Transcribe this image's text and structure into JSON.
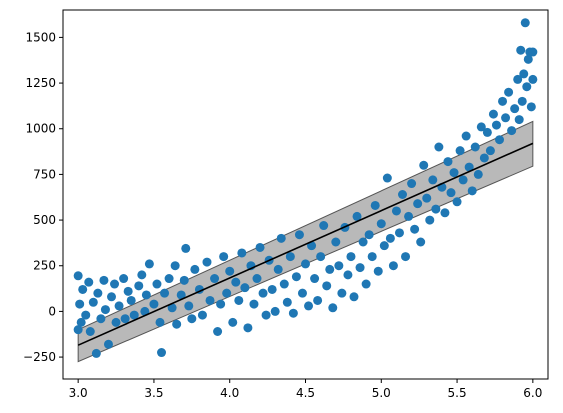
{
  "chart_data": {
    "type": "scatter",
    "title": "",
    "xlabel": "",
    "ylabel": "",
    "xlim": [
      2.9,
      6.1
    ],
    "ylim": [
      -370,
      1650
    ],
    "x_ticks": [
      3.0,
      3.5,
      4.0,
      4.5,
      5.0,
      5.5,
      6.0
    ],
    "x_tick_labels": [
      "3.0",
      "3.5",
      "4.0",
      "4.5",
      "5.0",
      "5.5",
      "6.0"
    ],
    "y_ticks": [
      -250,
      0,
      250,
      500,
      750,
      1000,
      1250,
      1500
    ],
    "y_tick_labels": [
      "−250",
      "0",
      "250",
      "500",
      "750",
      "1000",
      "1250",
      "1500"
    ],
    "grid": false,
    "legend": "none",
    "colors": {
      "points": "#1f77b4",
      "fit_line": "#000000",
      "band": "#808080"
    },
    "scatter_points": [
      [
        3.0,
        195
      ],
      [
        3.0,
        -100
      ],
      [
        3.01,
        40
      ],
      [
        3.02,
        -60
      ],
      [
        3.03,
        120
      ],
      [
        3.05,
        -20
      ],
      [
        3.07,
        160
      ],
      [
        3.08,
        -110
      ],
      [
        3.1,
        50
      ],
      [
        3.12,
        -230
      ],
      [
        3.13,
        100
      ],
      [
        3.15,
        -40
      ],
      [
        3.17,
        170
      ],
      [
        3.18,
        10
      ],
      [
        3.2,
        -180
      ],
      [
        3.22,
        80
      ],
      [
        3.24,
        150
      ],
      [
        3.25,
        -60
      ],
      [
        3.27,
        30
      ],
      [
        3.3,
        180
      ],
      [
        3.31,
        -40
      ],
      [
        3.33,
        110
      ],
      [
        3.35,
        60
      ],
      [
        3.37,
        -20
      ],
      [
        3.4,
        140
      ],
      [
        3.42,
        200
      ],
      [
        3.44,
        0
      ],
      [
        3.45,
        90
      ],
      [
        3.47,
        260
      ],
      [
        3.5,
        40
      ],
      [
        3.52,
        150
      ],
      [
        3.54,
        -60
      ],
      [
        3.55,
        -225
      ],
      [
        3.57,
        100
      ],
      [
        3.6,
        180
      ],
      [
        3.62,
        20
      ],
      [
        3.64,
        250
      ],
      [
        3.65,
        -70
      ],
      [
        3.68,
        90
      ],
      [
        3.7,
        170
      ],
      [
        3.71,
        345
      ],
      [
        3.73,
        30
      ],
      [
        3.75,
        -40
      ],
      [
        3.77,
        230
      ],
      [
        3.8,
        120
      ],
      [
        3.82,
        -20
      ],
      [
        3.85,
        270
      ],
      [
        3.87,
        60
      ],
      [
        3.9,
        180
      ],
      [
        3.92,
        -110
      ],
      [
        3.94,
        40
      ],
      [
        3.96,
        300
      ],
      [
        3.98,
        100
      ],
      [
        4.0,
        220
      ],
      [
        4.02,
        -60
      ],
      [
        4.04,
        160
      ],
      [
        4.06,
        60
      ],
      [
        4.08,
        320
      ],
      [
        4.1,
        130
      ],
      [
        4.12,
        -90
      ],
      [
        4.14,
        250
      ],
      [
        4.16,
        40
      ],
      [
        4.18,
        180
      ],
      [
        4.2,
        350
      ],
      [
        4.22,
        100
      ],
      [
        4.24,
        -20
      ],
      [
        4.26,
        280
      ],
      [
        4.28,
        120
      ],
      [
        4.3,
        0
      ],
      [
        4.32,
        230
      ],
      [
        4.34,
        400
      ],
      [
        4.36,
        150
      ],
      [
        4.38,
        50
      ],
      [
        4.4,
        300
      ],
      [
        4.42,
        -10
      ],
      [
        4.44,
        190
      ],
      [
        4.46,
        420
      ],
      [
        4.48,
        100
      ],
      [
        4.5,
        260
      ],
      [
        4.52,
        30
      ],
      [
        4.54,
        360
      ],
      [
        4.56,
        180
      ],
      [
        4.58,
        60
      ],
      [
        4.6,
        300
      ],
      [
        4.62,
        470
      ],
      [
        4.64,
        140
      ],
      [
        4.66,
        230
      ],
      [
        4.68,
        20
      ],
      [
        4.7,
        380
      ],
      [
        4.72,
        250
      ],
      [
        4.74,
        100
      ],
      [
        4.76,
        460
      ],
      [
        4.78,
        200
      ],
      [
        4.8,
        300
      ],
      [
        4.82,
        80
      ],
      [
        4.84,
        520
      ],
      [
        4.86,
        240
      ],
      [
        4.88,
        380
      ],
      [
        4.9,
        150
      ],
      [
        4.92,
        420
      ],
      [
        4.94,
        300
      ],
      [
        4.96,
        580
      ],
      [
        4.98,
        220
      ],
      [
        5.0,
        480
      ],
      [
        5.02,
        360
      ],
      [
        5.04,
        730
      ],
      [
        5.06,
        400
      ],
      [
        5.08,
        250
      ],
      [
        5.1,
        550
      ],
      [
        5.12,
        430
      ],
      [
        5.14,
        640
      ],
      [
        5.16,
        300
      ],
      [
        5.18,
        520
      ],
      [
        5.2,
        700
      ],
      [
        5.22,
        450
      ],
      [
        5.24,
        590
      ],
      [
        5.26,
        380
      ],
      [
        5.28,
        800
      ],
      [
        5.3,
        620
      ],
      [
        5.32,
        500
      ],
      [
        5.34,
        720
      ],
      [
        5.36,
        560
      ],
      [
        5.38,
        900
      ],
      [
        5.4,
        680
      ],
      [
        5.42,
        540
      ],
      [
        5.44,
        820
      ],
      [
        5.46,
        650
      ],
      [
        5.48,
        760
      ],
      [
        5.5,
        600
      ],
      [
        5.52,
        880
      ],
      [
        5.54,
        720
      ],
      [
        5.56,
        960
      ],
      [
        5.58,
        790
      ],
      [
        5.6,
        660
      ],
      [
        5.62,
        900
      ],
      [
        5.64,
        750
      ],
      [
        5.66,
        1010
      ],
      [
        5.68,
        840
      ],
      [
        5.7,
        980
      ],
      [
        5.72,
        880
      ],
      [
        5.74,
        1080
      ],
      [
        5.76,
        1020
      ],
      [
        5.78,
        940
      ],
      [
        5.8,
        1150
      ],
      [
        5.82,
        1060
      ],
      [
        5.84,
        1200
      ],
      [
        5.86,
        990
      ],
      [
        5.88,
        1110
      ],
      [
        5.9,
        1270
      ],
      [
        5.91,
        1050
      ],
      [
        5.92,
        1430
      ],
      [
        5.93,
        1150
      ],
      [
        5.94,
        1300
      ],
      [
        5.95,
        1580
      ],
      [
        5.96,
        1230
      ],
      [
        5.97,
        1380
      ],
      [
        5.98,
        1420
      ],
      [
        5.99,
        1120
      ],
      [
        6.0,
        1420
      ],
      [
        6.0,
        1270
      ]
    ],
    "fit_line": {
      "x": [
        3.0,
        6.0
      ],
      "y": [
        -185,
        920
      ]
    },
    "band": {
      "x": [
        3.0,
        6.0
      ],
      "upper": [
        -100,
        1040
      ],
      "lower": [
        -275,
        795
      ]
    }
  }
}
